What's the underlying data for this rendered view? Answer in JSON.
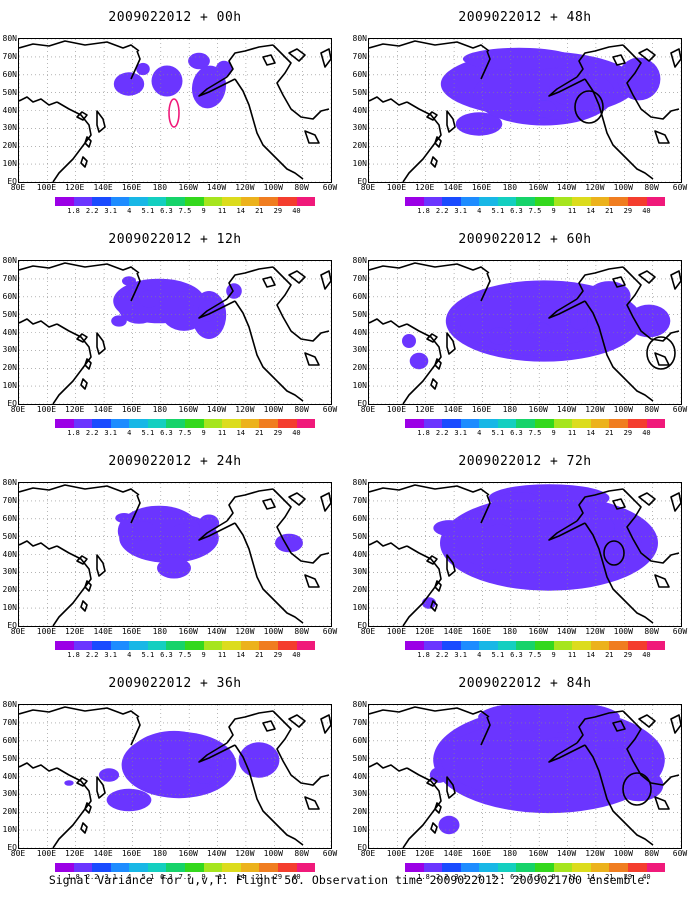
{
  "panels": [
    {
      "title": "2009022012 + 00h",
      "forecast": "00h"
    },
    {
      "title": "2009022012 + 48h",
      "forecast": "48h"
    },
    {
      "title": "2009022012 + 12h",
      "forecast": "12h"
    },
    {
      "title": "2009022012 + 60h",
      "forecast": "60h"
    },
    {
      "title": "2009022012 + 24h",
      "forecast": "24h"
    },
    {
      "title": "2009022012 + 72h",
      "forecast": "72h"
    },
    {
      "title": "2009022012 + 36h",
      "forecast": "36h"
    },
    {
      "title": "2009022012 + 84h",
      "forecast": "84h"
    }
  ],
  "lat_labels": [
    "80N",
    "70N",
    "60N",
    "50N",
    "40N",
    "30N",
    "20N",
    "10N",
    "EQ"
  ],
  "lon_labels": [
    "80E",
    "100E",
    "120E",
    "140E",
    "160E",
    "180",
    "160W",
    "140W",
    "120W",
    "100W",
    "80W",
    "60W"
  ],
  "colorbar": {
    "labels": [
      "1.8",
      "2.2",
      "3.1",
      "4",
      "5.1",
      "6.3",
      "7.5",
      "9",
      "11",
      "14",
      "21",
      "29",
      "40"
    ],
    "colors": [
      "#9b00e6",
      "#6b35ff",
      "#1a4bff",
      "#1e8cff",
      "#18b7e6",
      "#14cfc0",
      "#16d36a",
      "#34d81d",
      "#a6e51e",
      "#dcdc1d",
      "#ecb21c",
      "#f07d20",
      "#f43d2e",
      "#f0197a"
    ]
  },
  "footer": "Signal Variance for u,v,T. Flight 56. Observation time 2009022012. 2009021700 ensemble."
}
